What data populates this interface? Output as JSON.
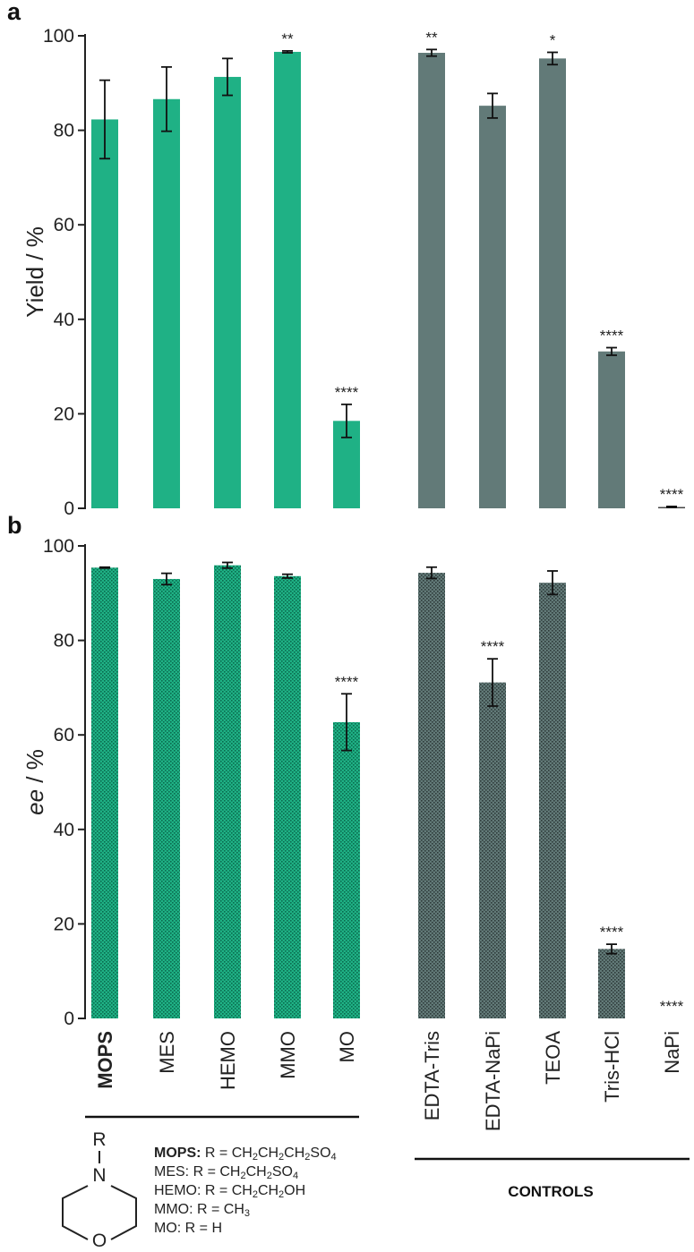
{
  "chart_data": [
    {
      "type": "bar",
      "panel": "a",
      "ylabel": "Yield / %",
      "ylim": [
        0,
        100
      ],
      "yticks": [
        "0",
        "20",
        "40",
        "60",
        "80",
        "100"
      ],
      "categories": [
        "MOPS",
        "MES",
        "HEMO",
        "MMO",
        "MO",
        "EDTA-Tris",
        "EDTA-NaPi",
        "TEOA",
        "Tris-HCl",
        "NaPi"
      ],
      "values": [
        82.3,
        86.6,
        91.3,
        96.6,
        18.5,
        96.4,
        85.2,
        95.2,
        33.2,
        0.3
      ],
      "errors": [
        8.3,
        6.8,
        3.9,
        0.2,
        3.5,
        0.7,
        2.6,
        1.3,
        0.8,
        0.1
      ],
      "significance": [
        "",
        "",
        "",
        "**",
        "****",
        "**",
        "",
        "*",
        "****",
        "****"
      ],
      "groups": [
        "buffer",
        "buffer",
        "buffer",
        "buffer",
        "buffer",
        "control",
        "control",
        "control",
        "control",
        "control"
      ],
      "colors": {
        "buffer": "#1fb185",
        "control": "#627a78"
      }
    },
    {
      "type": "bar",
      "panel": "b",
      "ylabel": "ee / %",
      "ylim": [
        0,
        100
      ],
      "yticks": [
        "0",
        "20",
        "40",
        "60",
        "80",
        "100"
      ],
      "categories": [
        "MOPS",
        "MES",
        "HEMO",
        "MMO",
        "MO",
        "EDTA-Tris",
        "EDTA-NaPi",
        "TEOA",
        "Tris-HCl",
        "NaPi"
      ],
      "values": [
        95.4,
        93.0,
        95.9,
        93.6,
        62.7,
        94.3,
        71.1,
        92.2,
        14.7,
        0
      ],
      "errors": [
        0.1,
        1.2,
        0.6,
        0.4,
        6.0,
        1.2,
        5.0,
        2.5,
        1.0,
        0
      ],
      "significance": [
        "",
        "",
        "",
        "",
        "****",
        "",
        "****",
        "",
        "****",
        "****"
      ],
      "groups": [
        "buffer",
        "buffer",
        "buffer",
        "buffer",
        "buffer",
        "control",
        "control",
        "control",
        "control",
        "control"
      ],
      "pattern": "crosshatch",
      "colors": {
        "buffer": "#1fb185",
        "control": "#627a78"
      }
    }
  ],
  "panel_labels": {
    "a": "a",
    "b": "b"
  },
  "bold_category": "MOPS",
  "legend": {
    "structure_atoms": {
      "r": "R",
      "n": "N",
      "o": "O"
    },
    "rows": [
      {
        "name": "MOPS:",
        "formula": "R = CH2CH2CH2SO4",
        "bold": true
      },
      {
        "name": "MES:",
        "formula": "R = CH2CH2SO4",
        "bold": false
      },
      {
        "name": "HEMO:",
        "formula": "R = CH2CH2OH",
        "bold": false
      },
      {
        "name": "MMO:",
        "formula": "R = CH3",
        "bold": false
      },
      {
        "name": "MO:",
        "formula": "R = H",
        "bold": false
      }
    ]
  },
  "controls_label": "CONTROLS"
}
